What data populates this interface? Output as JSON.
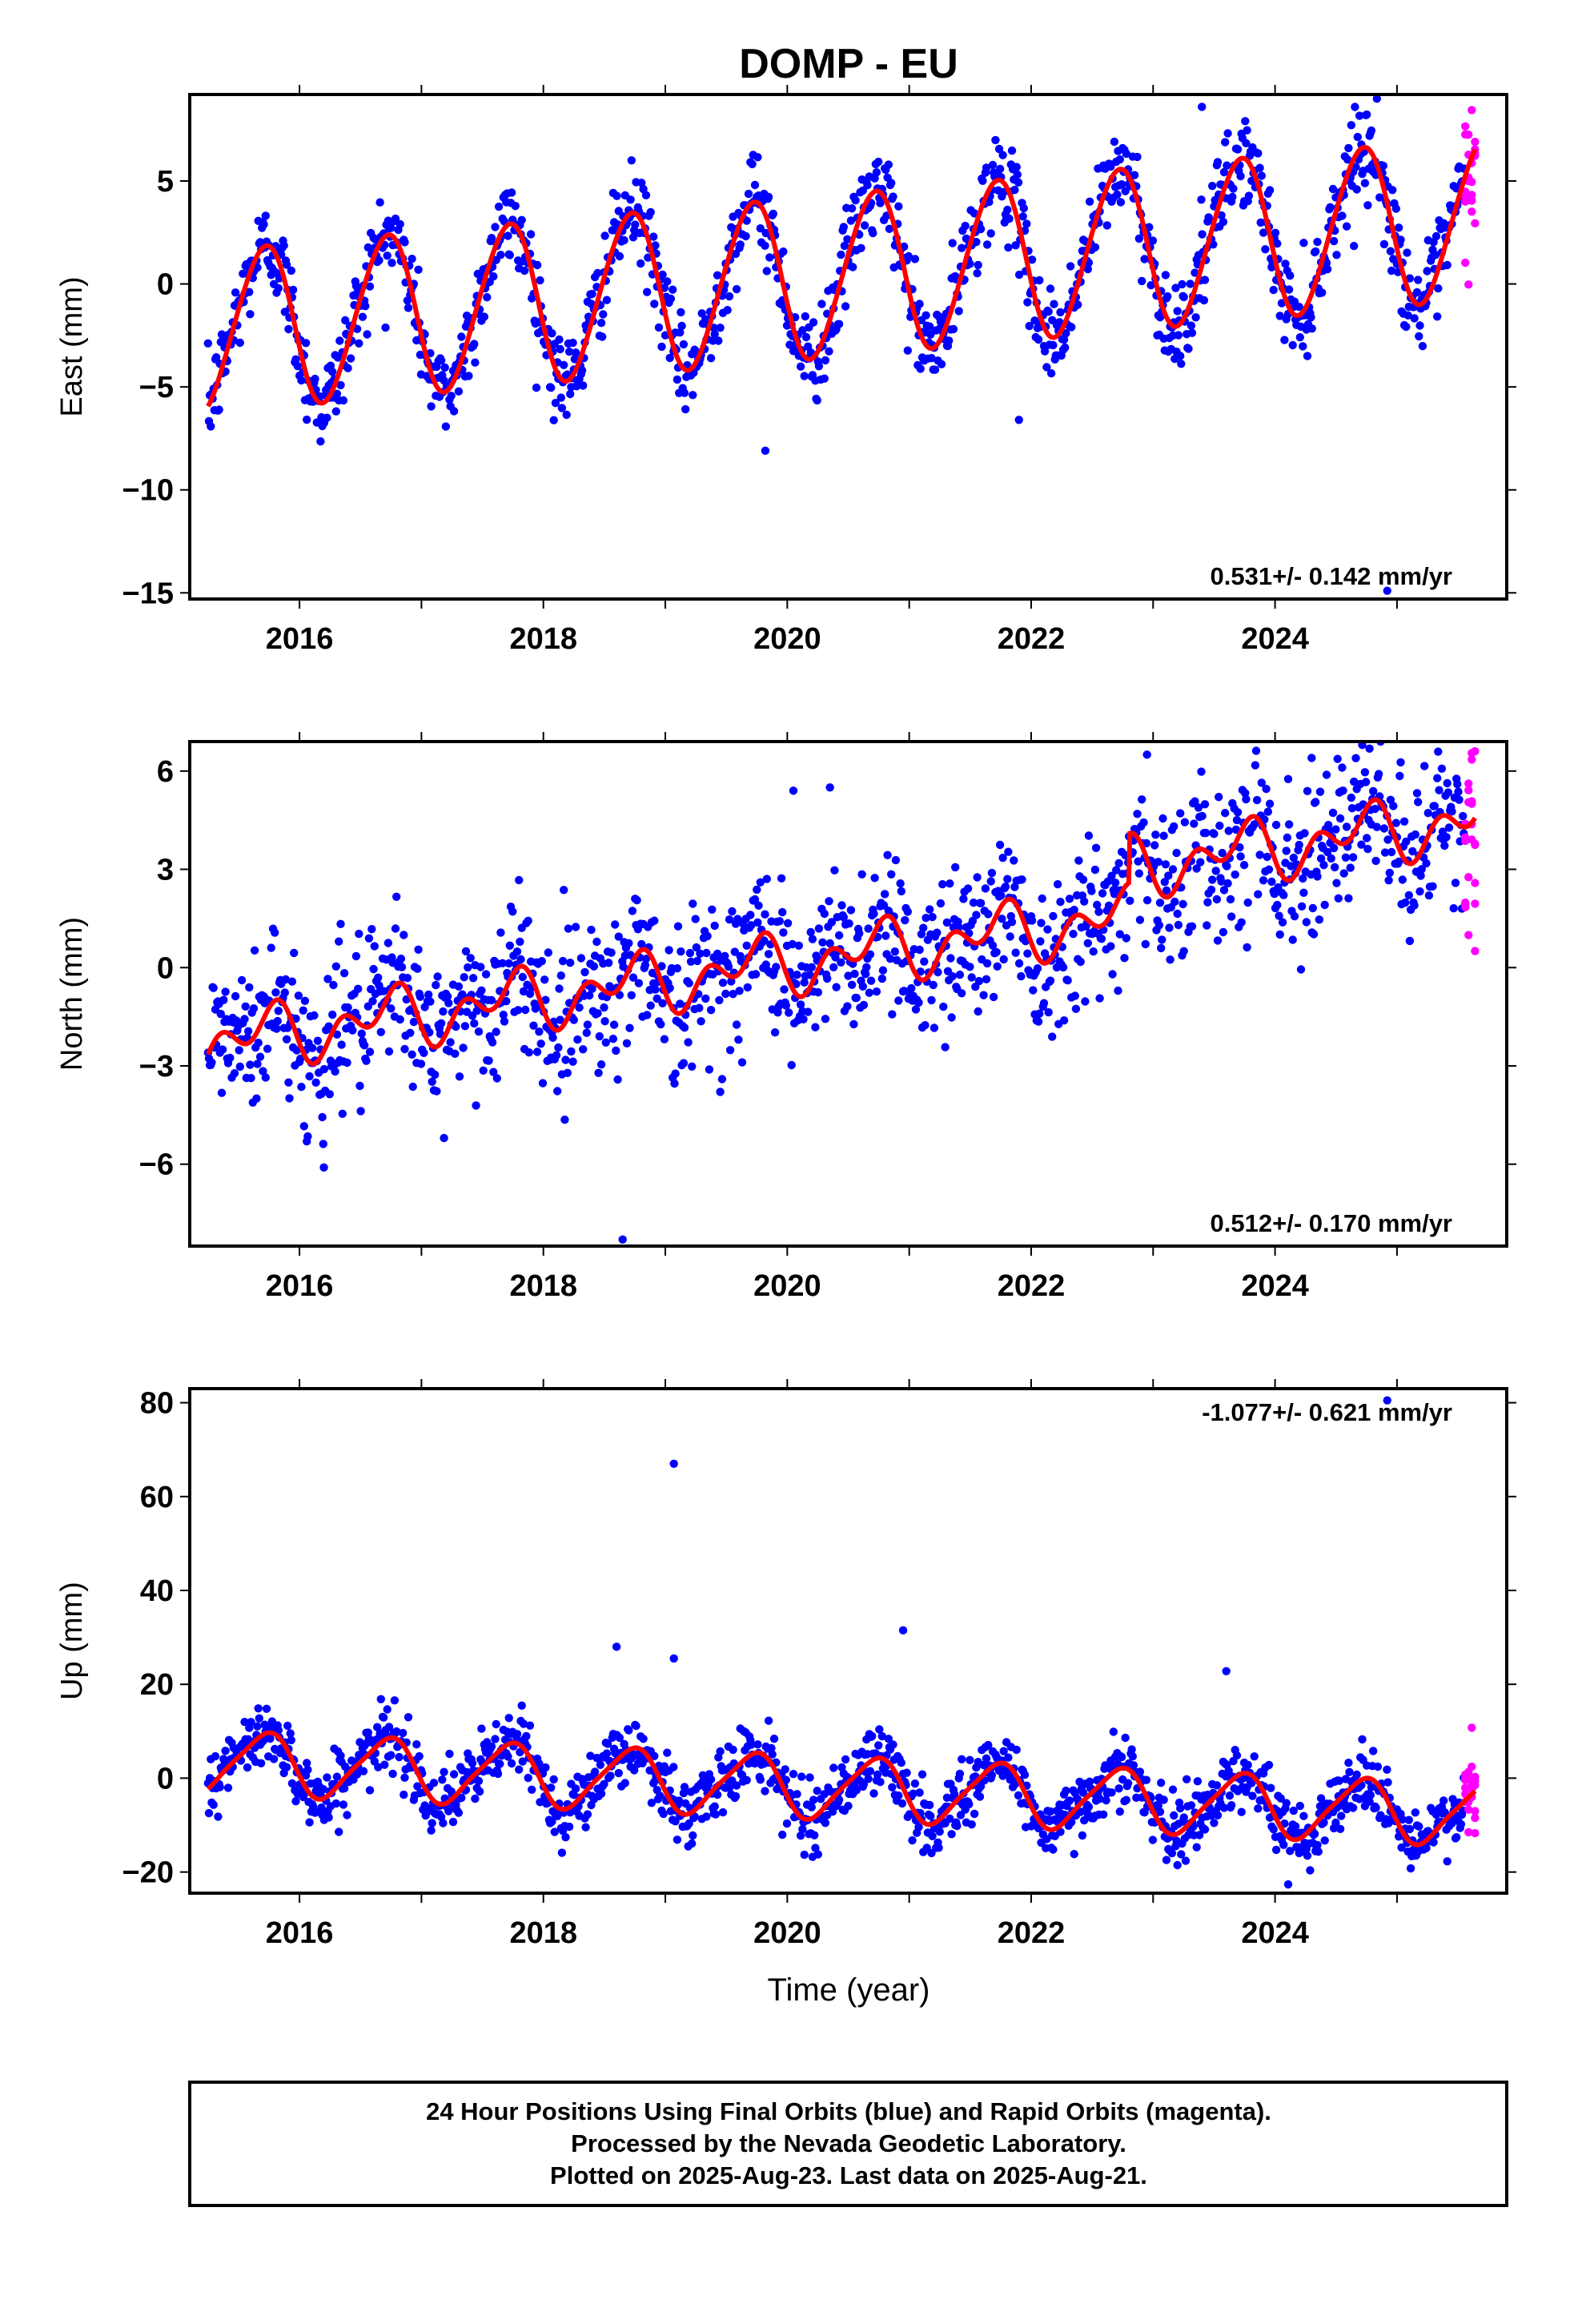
{
  "chart_data": {
    "type": "scatter",
    "title": "DOMP - EU",
    "xlabel": "Time (year)",
    "x_range": [
      2015.1,
      2025.9
    ],
    "x_ticks": [
      "2016",
      "2018",
      "2020",
      "2022",
      "2024"
    ],
    "x_tick_values": [
      2016,
      2018,
      2020,
      2022,
      2024
    ],
    "series_colors": {
      "final": "#0000ff",
      "rapid": "#ff00ff",
      "model": "#ff0000"
    },
    "panels": [
      {
        "name": "east",
        "ylabel": "East (mm)",
        "ylim": [
          -15.3,
          9.2
        ],
        "y_ticks": [
          "5",
          "0",
          "−5",
          "−10",
          "−15"
        ],
        "y_tick_values": [
          5,
          0,
          -5,
          -10,
          -15
        ],
        "rate_label": "0.531+/- 0.142 mm/yr",
        "model": {
          "trend_mm_per_yr": 0.531,
          "offset": -2.3,
          "annual_amp": 3.9,
          "semiannual_amp": 0.3,
          "noise_sd": 1.1
        },
        "outliers": [
          {
            "x": 2024.92,
            "y": -14.9
          },
          {
            "x": 2021.9,
            "y": -6.6
          },
          {
            "x": 2019.82,
            "y": -8.1
          },
          {
            "x": 2023.4,
            "y": 8.6
          }
        ]
      },
      {
        "name": "north",
        "ylabel": "North (mm)",
        "ylim": [
          -8.5,
          6.9
        ],
        "y_ticks": [
          "6",
          "3",
          "0",
          "−3",
          "−6"
        ],
        "y_tick_values": [
          6,
          3,
          0,
          -3,
          -6
        ],
        "rate_label": "0.512+/- 0.170 mm/yr",
        "model": {
          "trend_mm_per_yr": 0.512,
          "offset": -2.3,
          "annual_amp": 0.6,
          "semiannual_amp": 0.6,
          "noise_sd": 1.2,
          "step": {
            "at": 2022.8,
            "size": 1.5
          }
        },
        "outliers": [
          {
            "x": 2018.65,
            "y": -8.3
          },
          {
            "x": 2022.95,
            "y": 6.5
          },
          {
            "x": 2024.3,
            "y": 6.4
          },
          {
            "x": 2020.05,
            "y": 5.4
          },
          {
            "x": 2020.35,
            "y": 5.5
          },
          {
            "x": 2016.2,
            "y": -6.1
          }
        ]
      },
      {
        "name": "up",
        "ylabel": "Up (mm)",
        "ylim": [
          -24.5,
          83
        ],
        "y_ticks": [
          "80",
          "60",
          "40",
          "20",
          "0",
          "−20"
        ],
        "y_tick_values": [
          80,
          60,
          40,
          20,
          0,
          -20
        ],
        "rate_label": "-1.077+/- 0.621 mm/yr",
        "model": {
          "trend_mm_per_yr": -1.077,
          "offset": 3.5,
          "annual_amp": 6.5,
          "semiannual_amp": 1.2,
          "noise_sd": 3.5
        },
        "outliers": [
          {
            "x": 2019.07,
            "y": 67
          },
          {
            "x": 2020.95,
            "y": 31.5
          },
          {
            "x": 2018.6,
            "y": 28
          },
          {
            "x": 2019.07,
            "y": 25.5
          },
          {
            "x": 2024.92,
            "y": 80.5
          },
          {
            "x": 2023.6,
            "y": 22.8
          }
        ]
      }
    ],
    "final_orbits_range": [
      2015.25,
      2025.55
    ],
    "rapid_orbits_range": [
      2025.56,
      2025.64
    ]
  },
  "footer": {
    "line1": "24 Hour Positions Using Final Orbits (blue) and Rapid Orbits (magenta).",
    "line2": "Processed by the Nevada Geodetic Laboratory.",
    "line3": "Plotted on 2025-Aug-23. Last data on 2025-Aug-21."
  }
}
